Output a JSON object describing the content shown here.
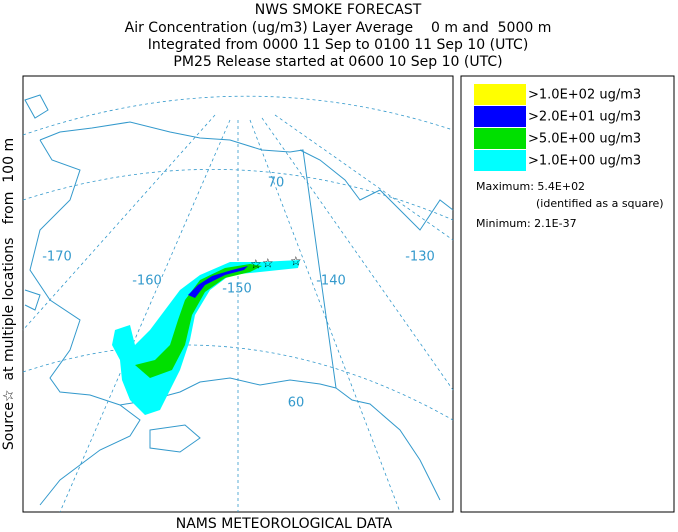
{
  "header": {
    "title": "NWS SMOKE FORECAST",
    "lines": [
      "Air Concentration (ug/m3) Layer Average    0 m and  5000 m",
      "Integrated from 0000 11 Sep to 0100 11 Sep 10 (UTC)",
      "PM25 Release started at 0600 10 Sep 10 (UTC)"
    ]
  },
  "side_label": "Source☆  at multiple locations   from  100 m",
  "footer": "NAMS METEOROLOGICAL DATA",
  "map": {
    "longitude_labels": [
      "-170",
      "-160",
      "-150",
      "-140",
      "-130"
    ],
    "latitude_labels": [
      "70",
      "60"
    ]
  },
  "legend": {
    "entries": [
      {
        "label": ">1.0E+02 ug/m3",
        "color": "#ffff00"
      },
      {
        "label": ">2.0E+01 ug/m3",
        "color": "#0000ff"
      },
      {
        "label": ">5.0E+00 ug/m3",
        "color": "#00e000"
      },
      {
        "label": ">1.0E+00 ug/m3",
        "color": "#00ffff"
      }
    ],
    "maximum": "Maximum: 5.4E+02",
    "maximum_note": "(identified as a square)",
    "minimum": "Minimum: 2.1E-37"
  }
}
